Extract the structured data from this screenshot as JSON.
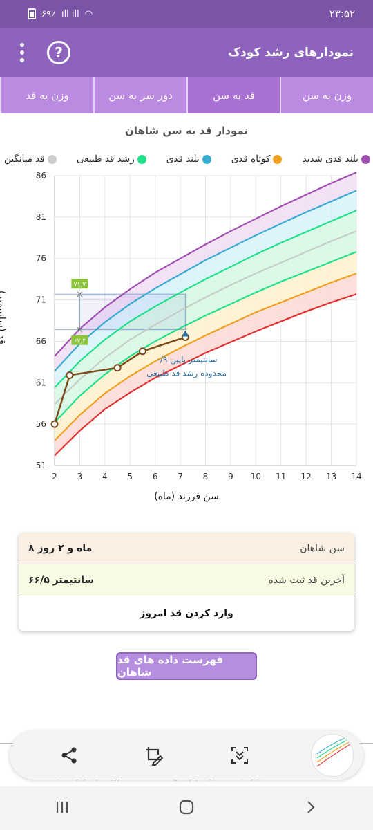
{
  "status": {
    "time": "۲۳:۵۲",
    "battery": "۶۹٪"
  },
  "appbar": {
    "title": "نمودارهای رشد کودک"
  },
  "tabs": [
    {
      "label": "وزن به سن",
      "active": false
    },
    {
      "label": "قد به سن",
      "active": true
    },
    {
      "label": "دور سر به سن",
      "active": false
    },
    {
      "label": "وزن به قد",
      "active": false
    }
  ],
  "chart_title": "نمودار قد به سن شاهان",
  "legend": [
    {
      "label": "بلند قدی شدید",
      "color": "#a050b0"
    },
    {
      "label": "کوتاه قدی",
      "color": "#f0a020"
    },
    {
      "label": "بلند قدی",
      "color": "#38acd0"
    },
    {
      "label": "رشد قد طبیعی",
      "color": "#20e08a"
    },
    {
      "label": "قد میانگین",
      "color": "#cccccc"
    }
  ],
  "chart_data": {
    "type": "line",
    "xlabel": "سن فرزند (ماه)",
    "ylabel": "قد (سانتیمتر)",
    "xlim": [
      2,
      14
    ],
    "ylim": [
      51,
      86
    ],
    "x_ticks": [
      "2",
      "3",
      "4",
      "5",
      "6",
      "7",
      "8",
      "9",
      "10",
      "11",
      "12",
      "13",
      "14"
    ],
    "y_ticks": [
      "51",
      "56",
      "61",
      "66",
      "71",
      "76",
      "81",
      "86"
    ],
    "curve_x": [
      2,
      3,
      4,
      5,
      6,
      7,
      8,
      9,
      10,
      11,
      12,
      13,
      14
    ],
    "curves": [
      {
        "name": "red",
        "color": "#e03030",
        "values": [
          52.2,
          55.2,
          57.8,
          59.8,
          61.6,
          63.1,
          64.6,
          65.9,
          67.2,
          68.4,
          69.6,
          70.7,
          71.7
        ]
      },
      {
        "name": "orange",
        "color": "#f0a020",
        "values": [
          54.0,
          57.1,
          59.7,
          61.8,
          63.6,
          65.2,
          66.7,
          68.1,
          69.5,
          70.7,
          71.9,
          73.1,
          74.2
        ]
      },
      {
        "name": "green-low",
        "color": "#20e08a",
        "values": [
          56.2,
          59.4,
          62.0,
          64.2,
          66.0,
          67.6,
          69.1,
          70.5,
          71.9,
          73.2,
          74.4,
          75.6,
          76.8
        ]
      },
      {
        "name": "median",
        "color": "#c8ccc8",
        "values": [
          58.4,
          61.4,
          64.0,
          66.2,
          68.0,
          69.7,
          71.3,
          72.8,
          74.2,
          75.5,
          76.8,
          78.1,
          79.3
        ]
      },
      {
        "name": "green-high",
        "color": "#20e08a",
        "values": [
          60.4,
          63.6,
          66.2,
          68.4,
          70.2,
          71.9,
          73.5,
          75.0,
          76.5,
          77.9,
          79.2,
          80.5,
          81.8
        ]
      },
      {
        "name": "blue",
        "color": "#38acd0",
        "values": [
          62.4,
          65.7,
          68.3,
          70.5,
          72.4,
          74.1,
          75.8,
          77.3,
          78.8,
          80.2,
          81.6,
          82.9,
          84.2
        ]
      },
      {
        "name": "purple",
        "color": "#a050b0",
        "values": [
          64.2,
          67.5,
          70.1,
          72.3,
          74.3,
          76.0,
          77.7,
          79.3,
          80.8,
          82.3,
          83.7,
          85.1,
          86.4
        ]
      }
    ],
    "measurements": {
      "x": [
        2.0,
        2.6,
        4.5,
        5.5,
        7.2
      ],
      "y": [
        56.0,
        61.9,
        62.8,
        64.8,
        66.5
      ]
    },
    "highlight": {
      "x": 3,
      "upper": 71.7,
      "lower": 67.4,
      "upper_label": "۷۱٫۷",
      "lower_label": "۶۷٫۴",
      "range_end_x": 7.2
    },
    "annotation": {
      "line1": "۰/۹ سانتیمتر پایین",
      "line2": "محدوده رشد قد طبیعی"
    }
  },
  "summary": {
    "age_label": "سن شاهان",
    "age_value": "۸ ماه و ۲ روز",
    "height_label": "آخرین قد ثبت شده",
    "height_value": "۶۶/۵ سانتیمتر",
    "enter_label": "وارد کردن قد امروز"
  },
  "list_button": "فهرست داده های قد شاهان",
  "background_text": "ابزارهای سلامت   پرسش و پاسخ   دانشنامه سلامت   روزشمار بانو   نوبت‌دهی"
}
